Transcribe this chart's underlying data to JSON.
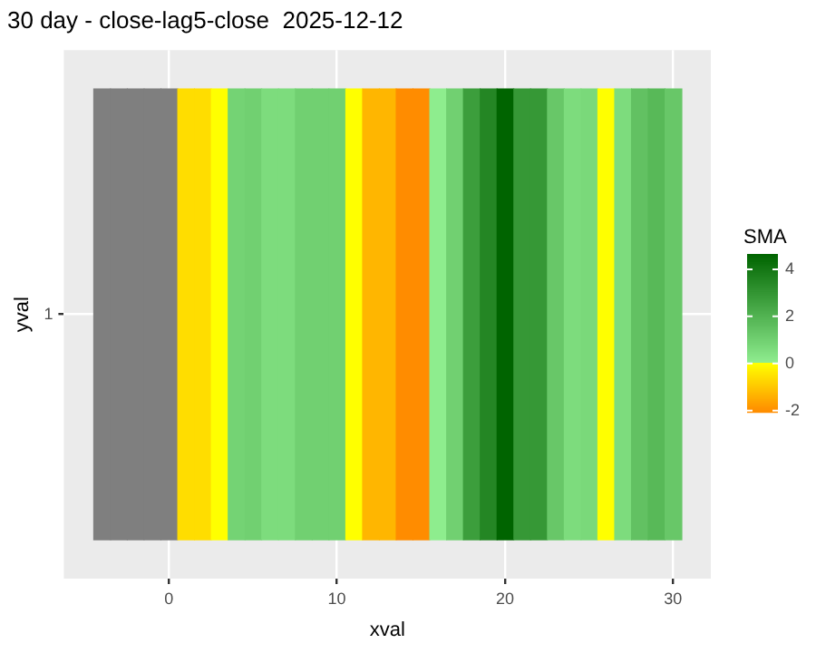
{
  "chart_data": {
    "type": "heatmap",
    "title": "30 day - close-lag5-close  2025-12-12",
    "xlabel": "xval",
    "ylabel": "yval",
    "clabel": "SMA",
    "x": [
      -4,
      -3,
      -2,
      -1,
      0,
      1,
      2,
      3,
      4,
      5,
      6,
      7,
      8,
      9,
      10,
      11,
      12,
      13,
      14,
      15,
      16,
      17,
      18,
      19,
      20,
      21,
      22,
      23,
      24,
      25,
      26,
      27,
      28,
      29,
      30
    ],
    "y_categories": [
      "1"
    ],
    "cells": [
      [
        null,
        null,
        null,
        null,
        null,
        -0.6,
        -0.6,
        0,
        0.9,
        1.0,
        0.6,
        0.6,
        1.0,
        1.0,
        1.0,
        0,
        -1.3,
        -1.3,
        -2.05,
        -2.05,
        0.05,
        1.0,
        2.7,
        3.5,
        4.65,
        2.9,
        2.9,
        1.3,
        0.6,
        0.7,
        0,
        0.6,
        1.5,
        1.8,
        1.3
      ]
    ],
    "colors": [
      "#ff8c00",
      "#ffff00",
      "#90ee90",
      "#006400"
    ],
    "clim": [
      -2.05,
      4.65
    ],
    "cticks": [
      -2,
      0,
      2,
      4
    ],
    "xlim": [
      -6.25,
      32.25
    ],
    "xticks": [
      0,
      10,
      20,
      30
    ],
    "grid": true
  }
}
